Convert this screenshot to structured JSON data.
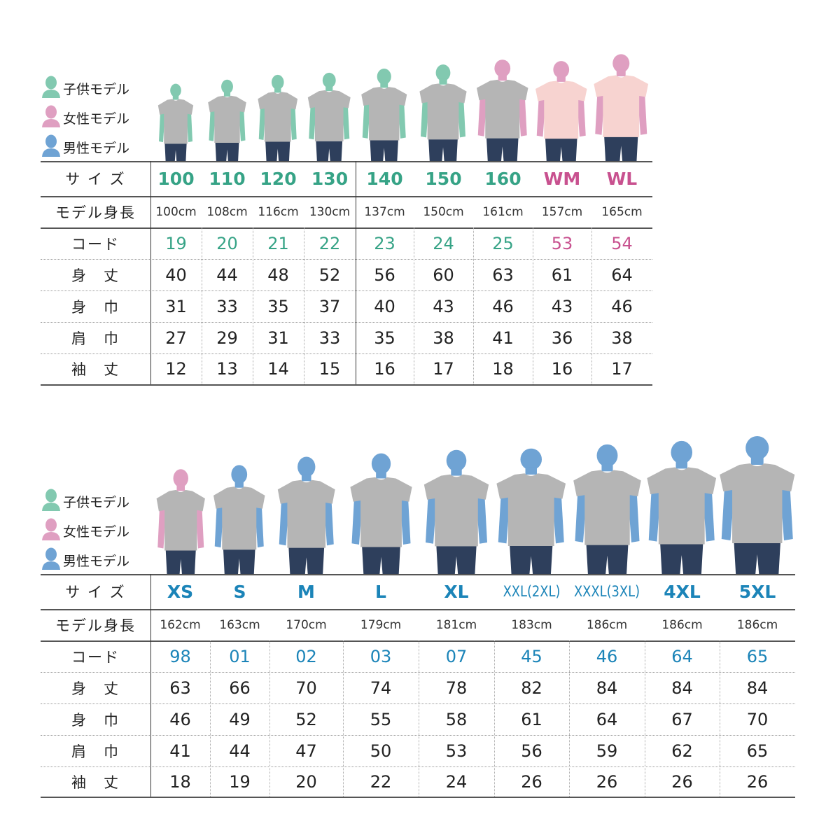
{
  "legend": [
    {
      "label": "子供モデル",
      "type": "kid"
    },
    {
      "label": "女性モデル",
      "type": "women"
    },
    {
      "label": "男性モデル",
      "type": "men"
    }
  ],
  "row_labels": {
    "size": "サ イ ズ",
    "model_height": "モデル身長",
    "code": "コード",
    "body_length": "身　丈",
    "body_width": "身　巾",
    "shoulder_width": "肩　巾",
    "sleeve_length": "袖　丈"
  },
  "colors": {
    "kid_text": "#36a386",
    "women_text": "#c8518f",
    "men_text": "#1b84b8",
    "kid_figure": "#82c9b0",
    "women_figure": "#df9fc1",
    "men_figure": "#6fa3d4"
  },
  "tables": [
    {
      "sizes": [
        {
          "size": "100",
          "type": "kid",
          "model_height": "100cm",
          "code": "19",
          "body_length": "40",
          "body_width": "31",
          "shoulder_width": "27",
          "sleeve_length": "12"
        },
        {
          "size": "110",
          "type": "kid",
          "model_height": "108cm",
          "code": "20",
          "body_length": "44",
          "body_width": "33",
          "shoulder_width": "29",
          "sleeve_length": "13"
        },
        {
          "size": "120",
          "type": "kid",
          "model_height": "116cm",
          "code": "21",
          "body_length": "48",
          "body_width": "35",
          "shoulder_width": "31",
          "sleeve_length": "14"
        },
        {
          "size": "130",
          "type": "kid",
          "model_height": "130cm",
          "code": "22",
          "body_length": "52",
          "body_width": "37",
          "shoulder_width": "33",
          "sleeve_length": "15"
        },
        {
          "size": "140",
          "type": "kid",
          "model_height": "137cm",
          "code": "23",
          "body_length": "56",
          "body_width": "40",
          "shoulder_width": "35",
          "sleeve_length": "16"
        },
        {
          "size": "150",
          "type": "kid",
          "model_height": "150cm",
          "code": "24",
          "body_length": "60",
          "body_width": "43",
          "shoulder_width": "38",
          "sleeve_length": "17"
        },
        {
          "size": "160",
          "type": "women",
          "model_height": "161cm",
          "code": "25",
          "body_length": "63",
          "body_width": "46",
          "shoulder_width": "41",
          "sleeve_length": "18",
          "size_color_type": "kid"
        },
        {
          "size": "WM",
          "type": "women",
          "model_height": "157cm",
          "code": "53",
          "body_length": "61",
          "body_width": "43",
          "shoulder_width": "36",
          "sleeve_length": "16",
          "shirt": "pink"
        },
        {
          "size": "WL",
          "type": "women",
          "model_height": "165cm",
          "code": "54",
          "body_length": "64",
          "body_width": "46",
          "shoulder_width": "38",
          "sleeve_length": "17",
          "shirt": "pink"
        }
      ]
    },
    {
      "sizes": [
        {
          "size": "XS",
          "type": "women",
          "model_height": "162cm",
          "code": "98",
          "body_length": "63",
          "body_width": "46",
          "shoulder_width": "41",
          "sleeve_length": "18",
          "size_color_type": "men"
        },
        {
          "size": "S",
          "type": "men",
          "model_height": "163cm",
          "code": "01",
          "body_length": "66",
          "body_width": "49",
          "shoulder_width": "44",
          "sleeve_length": "19"
        },
        {
          "size": "M",
          "type": "men",
          "model_height": "170cm",
          "code": "02",
          "body_length": "70",
          "body_width": "52",
          "shoulder_width": "47",
          "sleeve_length": "20"
        },
        {
          "size": "L",
          "type": "men",
          "model_height": "179cm",
          "code": "03",
          "body_length": "74",
          "body_width": "55",
          "shoulder_width": "50",
          "sleeve_length": "22"
        },
        {
          "size": "XL",
          "type": "men",
          "model_height": "181cm",
          "code": "07",
          "body_length": "78",
          "body_width": "58",
          "shoulder_width": "53",
          "sleeve_length": "24"
        },
        {
          "size": "XXL(2XL)",
          "type": "men",
          "model_height": "183cm",
          "code": "45",
          "body_length": "82",
          "body_width": "61",
          "shoulder_width": "56",
          "sleeve_length": "26"
        },
        {
          "size": "XXXL(3XL)",
          "type": "men",
          "model_height": "186cm",
          "code": "46",
          "body_length": "84",
          "body_width": "64",
          "shoulder_width": "59",
          "sleeve_length": "26"
        },
        {
          "size": "4XL",
          "type": "men",
          "model_height": "186cm",
          "code": "64",
          "body_length": "84",
          "body_width": "67",
          "shoulder_width": "62",
          "sleeve_length": "26"
        },
        {
          "size": "5XL",
          "type": "men",
          "model_height": "186cm",
          "code": "65",
          "body_length": "84",
          "body_width": "70",
          "shoulder_width": "65",
          "sleeve_length": "26"
        }
      ]
    }
  ]
}
